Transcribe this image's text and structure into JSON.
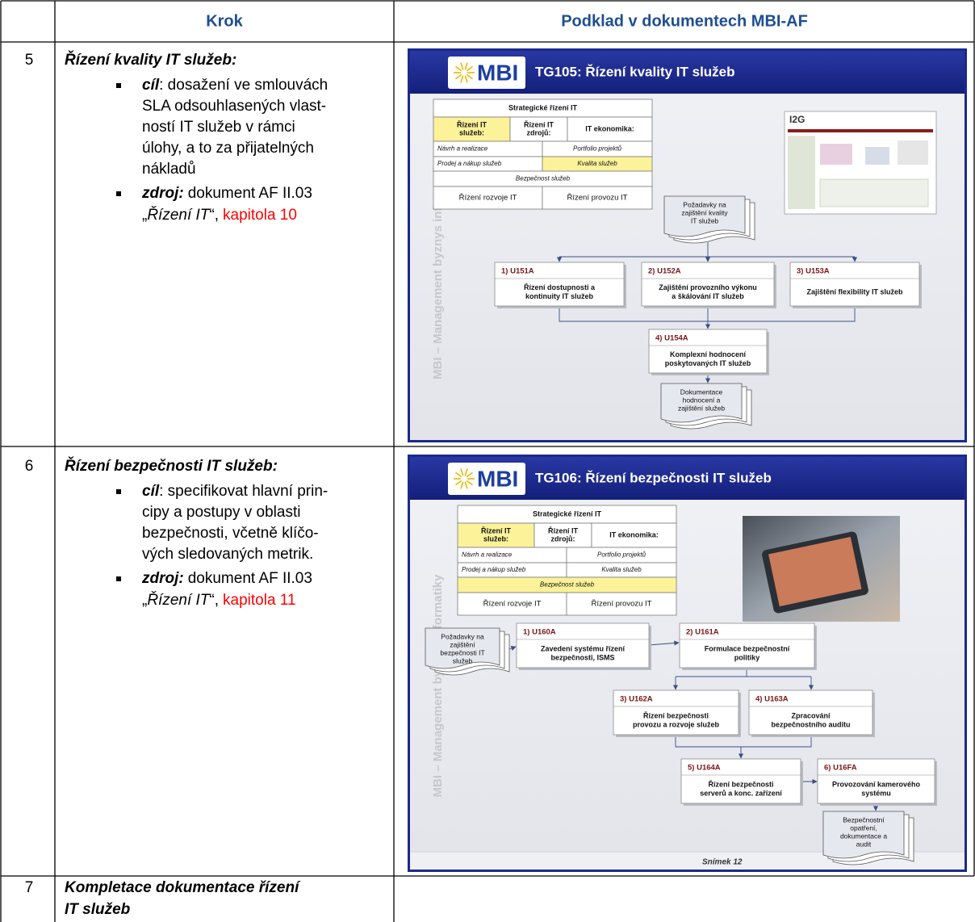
{
  "header": {
    "step": "Krok",
    "source": "Podklad v dokumentech MBI-AF"
  },
  "rows": [
    {
      "number": "5",
      "title": "Řízení kvality IT služeb:",
      "goal": {
        "label": "cíl",
        "lines": [
          ": dosažení ve smlouvách",
          "SLA odsouhlasených vlast-",
          "ností IT služeb v rámci",
          "úlohy, a to za přijatelných",
          "nákladů"
        ]
      },
      "source": {
        "label": "zdroj:",
        "text": "dokument AF II.03",
        "open_quote": "„",
        "document": "Řízení IT",
        "close_quote": "“,",
        "chapter": "kapitola 10"
      },
      "slide": {
        "logo": "MBI",
        "title": "TG105: Řízení kvality IT služeb",
        "side_text": "MBI – Management byznys informatiky",
        "matrix": {
          "top": "Strategické řízení IT",
          "services": [
            "Řízení IT",
            "služeb:"
          ],
          "resources": [
            "Řízení IT",
            "zdrojů:"
          ],
          "economics": "IT ekonomika:",
          "design": "Návrh a realizace",
          "portfolio": "Portfolio projektů",
          "sales": "Prodej a nákup služeb",
          "quality": "Kvalita služeb",
          "security": "Bezpečnost služeb",
          "development": "Řízení rozvoje IT",
          "operations": "Řízení provozu IT"
        },
        "screenshot_logo": "I2G",
        "inputs": [
          "Požadavky na",
          "zajištění kvality",
          "IT služeb"
        ],
        "tasks": [
          {
            "id": "1) U151A",
            "lines": [
              "Řízení dostupnosti a",
              "kontinuity IT služeb"
            ]
          },
          {
            "id": "2) U152A",
            "lines": [
              "Zajištění provozního výkonu",
              "a škálování IT služeb"
            ]
          },
          {
            "id": "3) U153A",
            "lines": [
              "Zajištění flexibility IT služeb"
            ]
          },
          {
            "id": "4) U154A",
            "lines": [
              "Komplexní hodnocení",
              "poskytovaných IT služeb"
            ]
          }
        ],
        "outputs": [
          "Dokumentace",
          "hodnocení a",
          "zajištění služeb"
        ]
      }
    },
    {
      "number": "6",
      "title": "Řízení bezpečnosti IT služeb:",
      "goal": {
        "label": "cíl",
        "lines": [
          ": specifikovat hlavní prin-",
          "cipy a postupy v oblasti",
          "bezpečnosti, včetně klíčo-",
          "vých sledovaných metrik."
        ]
      },
      "source": {
        "label": "zdroj:",
        "text": "dokument AF II.03",
        "open_quote": "„",
        "document": "Řízení IT",
        "close_quote": "“,",
        "chapter": "kapitola 11"
      },
      "slide": {
        "logo": "MBI",
        "title": "TG106: Řízení bezpečnosti IT služeb",
        "side_text": "MBI – Management byznys informatiky",
        "matrix": {
          "top": "Strategické řízení IT",
          "services": [
            "Řízení IT",
            "služeb:"
          ],
          "resources": [
            "Řízení IT",
            "zdrojů:"
          ],
          "economics": "IT ekonomika:",
          "design": "Návrh a realizace",
          "portfolio": "Portfolio projektů",
          "sales": "Prodej a nákup služeb",
          "quality": "Kvalita služeb",
          "security": "Bezpečnost služeb",
          "development": "Řízení rozvoje IT",
          "operations": "Řízení provozu IT"
        },
        "inputs": [
          "Požadavky na",
          "zajištění",
          "bezpečnosti IT",
          "služeb"
        ],
        "tasks": [
          {
            "id": "1) U160A",
            "lines": [
              "Zavedení systému řízení",
              "bezpečnosti, ISMS"
            ]
          },
          {
            "id": "2) U161A",
            "lines": [
              "Formulace bezpečnostní",
              "politiky"
            ]
          },
          {
            "id": "3) U162A",
            "lines": [
              "Řízení bezpečnosti",
              "provozu a rozvoje služeb"
            ]
          },
          {
            "id": "4) U163A",
            "lines": [
              "Zpracování",
              "bezpečnostního auditu"
            ]
          },
          {
            "id": "5) U164A",
            "lines": [
              "Řízení bezpečnosti",
              "serverů a konc. zařízení"
            ]
          },
          {
            "id": "6) U16FA",
            "lines": [
              "Provozování kamerového",
              "systému"
            ]
          }
        ],
        "outputs": [
          "Bezpečnostní",
          "opatření,",
          "dokumentace a",
          "audit"
        ],
        "footer": "Snímek 12"
      }
    },
    {
      "number": "7",
      "title_lines": [
        "Kompletace dokumentace řízení",
        "IT služeb"
      ]
    }
  ]
}
